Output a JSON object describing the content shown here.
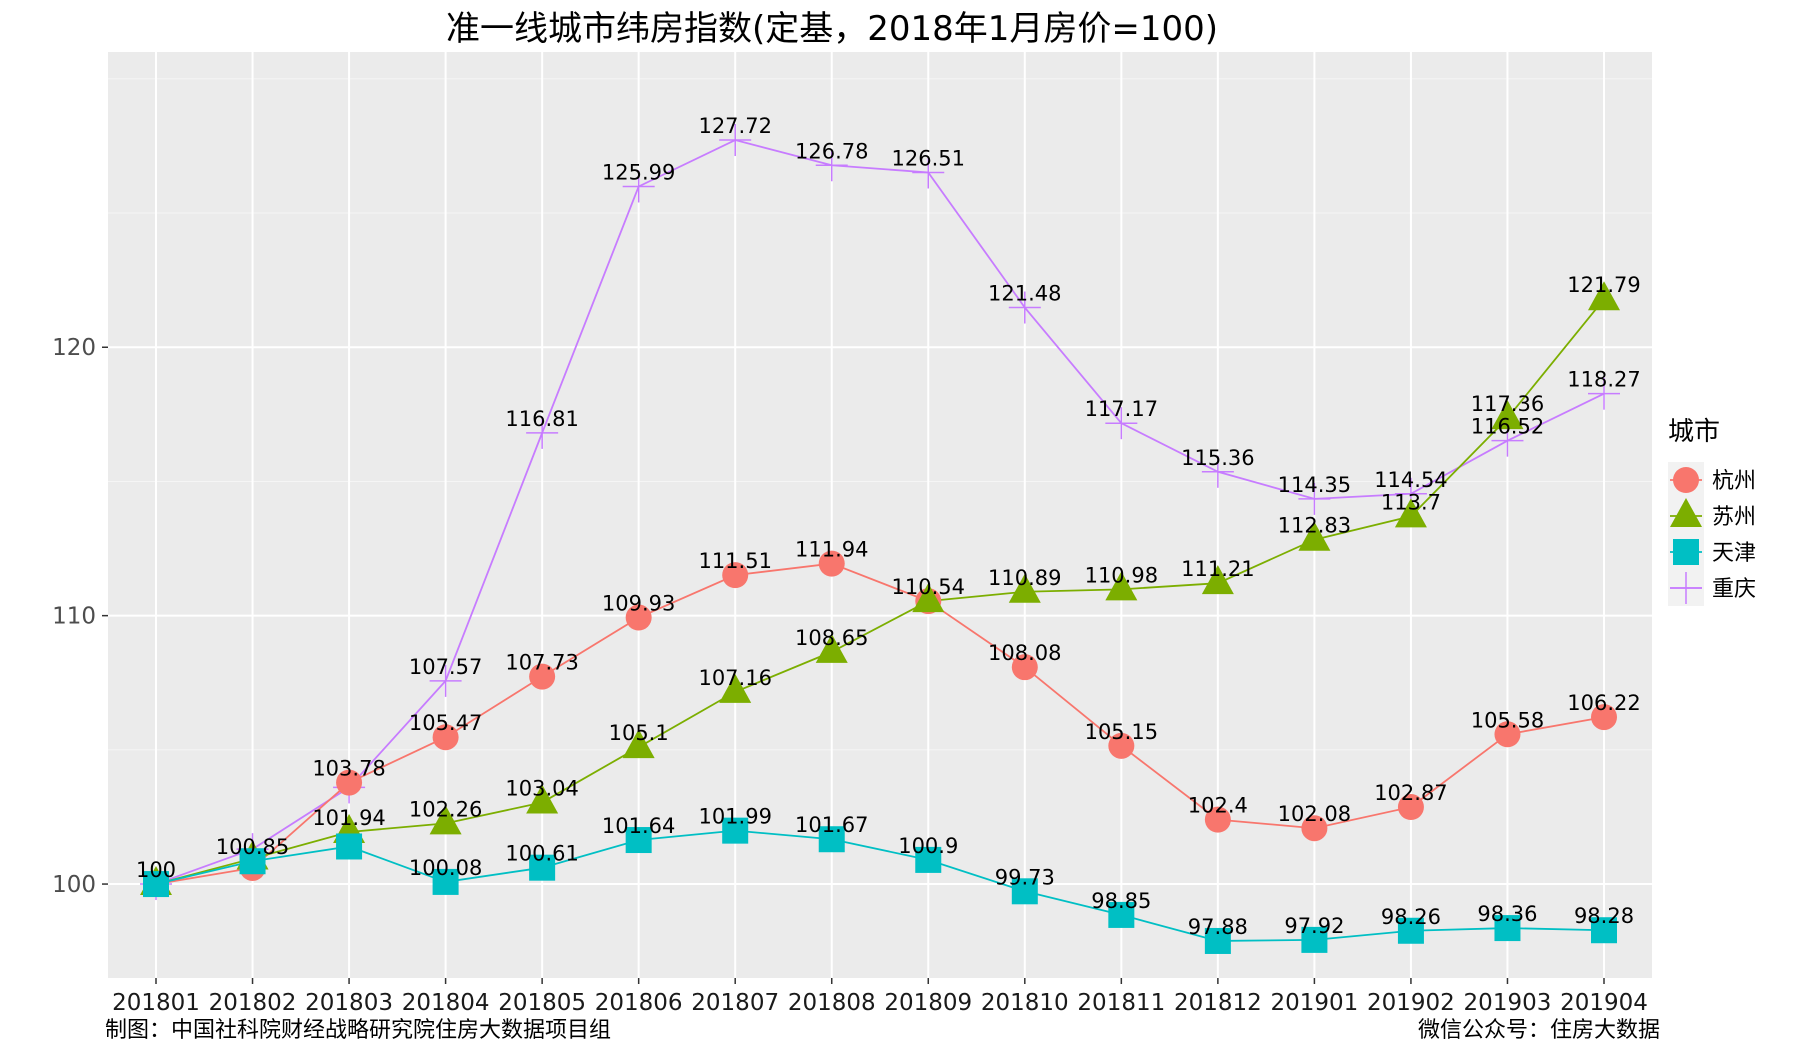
{
  "chart_data": {
    "type": "line",
    "title": "准一线城市纬房指数(定基，2018年1月房价=100)",
    "categories": [
      "201801",
      "201802",
      "201803",
      "201804",
      "201805",
      "201806",
      "201807",
      "201808",
      "201809",
      "201810",
      "201811",
      "201812",
      "201901",
      "201902",
      "201903",
      "201904"
    ],
    "ylim": [
      96.5,
      131
    ],
    "yticks": [
      100,
      110,
      120
    ],
    "grid": true,
    "legend": {
      "title": "城市",
      "position": "right"
    },
    "series": [
      {
        "name": "杭州",
        "color": "#F8766D",
        "shape": "circle",
        "values": [
          100,
          100.6,
          103.78,
          105.47,
          107.73,
          109.93,
          111.51,
          111.94,
          110.54,
          108.08,
          105.15,
          102.4,
          102.08,
          102.87,
          105.58,
          106.22
        ],
        "labels": [
          "",
          "",
          "103.78",
          "105.47",
          "107.73",
          "109.93",
          "111.51",
          "111.94",
          "110.54",
          "108.08",
          "105.15",
          "102.4",
          "102.08",
          "102.87",
          "105.58",
          "106.22"
        ]
      },
      {
        "name": "苏州",
        "color": "#7CAE00",
        "shape": "triangle",
        "values": [
          100,
          100.95,
          101.94,
          102.26,
          103.04,
          105.1,
          107.16,
          108.65,
          110.54,
          110.89,
          110.98,
          111.21,
          112.83,
          113.7,
          117.36,
          121.79
        ],
        "labels": [
          "",
          "",
          "101.94",
          "102.26",
          "103.04",
          "105.1",
          "107.16",
          "108.65",
          "",
          "110.89",
          "110.98",
          "111.21",
          "112.83",
          "113.7",
          "117.36",
          "121.79"
        ]
      },
      {
        "name": "天津",
        "color": "#00BFC4",
        "shape": "square",
        "values": [
          100,
          100.85,
          101.4,
          100.08,
          100.61,
          101.64,
          101.99,
          101.67,
          100.9,
          99.73,
          98.85,
          97.88,
          97.92,
          98.26,
          98.36,
          98.28
        ],
        "labels": [
          "",
          "100.85",
          "",
          "100.08",
          "100.61",
          "101.64",
          "101.99",
          "101.67",
          "100.9",
          "99.73",
          "98.85",
          "97.88",
          "97.92",
          "98.26",
          "98.36",
          "98.28"
        ]
      },
      {
        "name": "重庆",
        "color": "#C77CFF",
        "shape": "plus",
        "values": [
          100,
          101.3,
          103.6,
          107.57,
          116.81,
          125.99,
          127.72,
          126.78,
          126.51,
          121.48,
          117.17,
          115.36,
          114.35,
          114.54,
          116.52,
          118.27
        ],
        "labels": [
          "100",
          "",
          "",
          "107.57",
          "116.81",
          "125.99",
          "127.72",
          "126.78",
          "126.51",
          "121.48",
          "117.17",
          "115.36",
          "114.35",
          "114.54",
          "116.52",
          "118.27"
        ]
      }
    ]
  },
  "captions": {
    "left": "制图：中国社科院财经战略研究院住房大数据项目组",
    "right": "微信公众号：住房大数据"
  }
}
